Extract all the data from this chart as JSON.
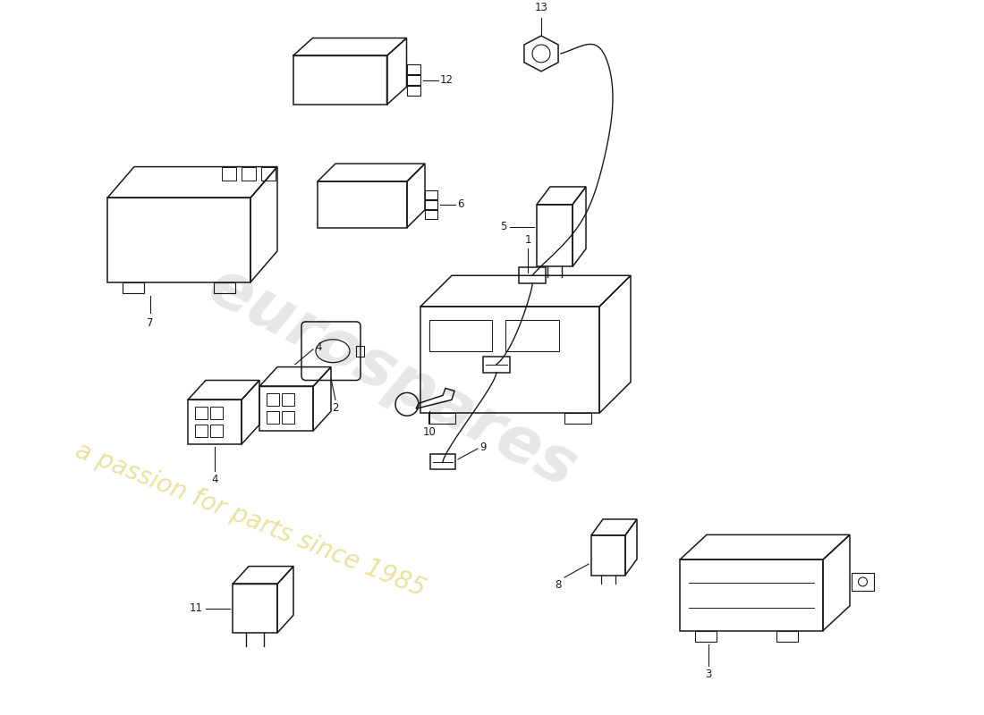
{
  "background_color": "#ffffff",
  "line_color": "#1a1a1a",
  "lw": 1.1,
  "wm1_text": "eurospares",
  "wm1_color": "#c0c0c0",
  "wm1_alpha": 0.38,
  "wm2_text": "a passion for parts since 1985",
  "wm2_color": "#c8b000",
  "wm2_alpha": 0.38,
  "fig_w": 11.0,
  "fig_h": 8.0
}
